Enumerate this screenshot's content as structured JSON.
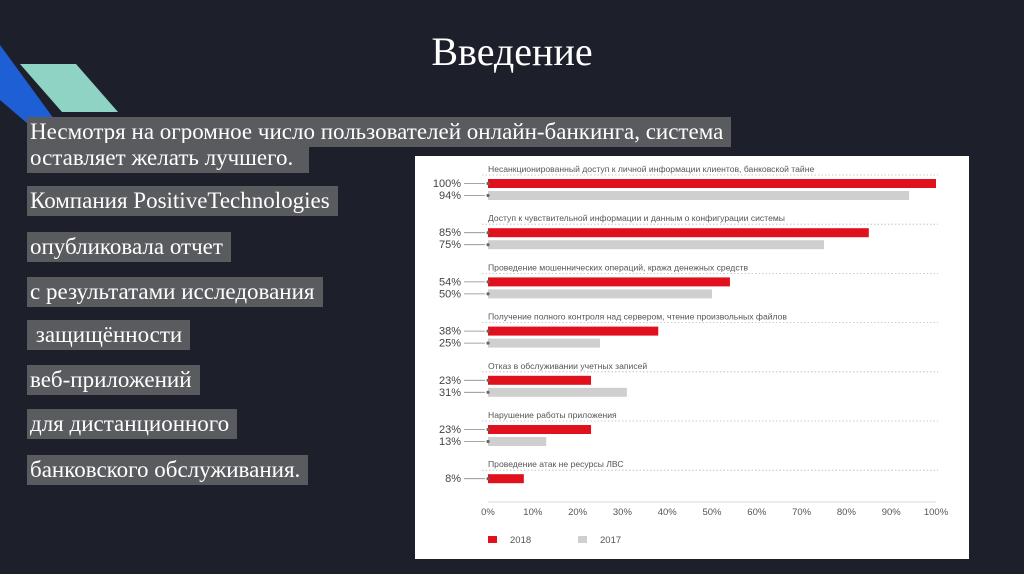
{
  "slide": {
    "title": "Введение",
    "lines": [
      "Несмотря на огромное число пользователей онлайн-банкинга, система",
      "оставляет желать лучшего.",
      "Компания PositiveTechnologies",
      "опубликовала отчет",
      "с результатами исследования",
      " защищённости",
      "веб-приложений",
      "для дистанционного",
      "банковского обслуживания."
    ]
  },
  "colors": {
    "background": "#1d202b",
    "accent_blue": "#1f5fd6",
    "accent_teal": "#8fd3c4",
    "series_2018": "#e0101c",
    "series_2017": "#cfcfcf"
  },
  "chart_data": {
    "type": "bar",
    "orientation": "horizontal",
    "categories": [
      "Несанкционированный доступ к личной информации клиентов, банковской тайне",
      "Доступ к чувствительной информации и данным о конфигурации системы",
      "Проведение мошеннических операций, кража денежных средств",
      "Получение полного контроля над сервером, чтение произвольных файлов",
      "Отказ в обслуживании учетных записей",
      "Нарушение работы приложения",
      "Проведение атак не ресурсы ЛВС"
    ],
    "series": [
      {
        "name": "2018",
        "color": "#e0101c",
        "values": [
          100,
          85,
          54,
          38,
          23,
          23,
          8
        ]
      },
      {
        "name": "2017",
        "color": "#cfcfcf",
        "values": [
          94,
          75,
          50,
          25,
          31,
          13,
          null
        ]
      }
    ],
    "value_labels": [
      [
        "100%",
        "94%"
      ],
      [
        "85%",
        "75%"
      ],
      [
        "54%",
        "50%"
      ],
      [
        "38%",
        "25%"
      ],
      [
        "23%",
        "31%"
      ],
      [
        "23%",
        "13%"
      ],
      [
        "8%"
      ]
    ],
    "xticks": [
      "0%",
      "10%",
      "20%",
      "30%",
      "40%",
      "50%",
      "60%",
      "70%",
      "80%",
      "90%",
      "100%"
    ],
    "xlim": [
      0,
      100
    ],
    "legend": [
      "2018",
      "2017"
    ],
    "legend_position": "bottom-left",
    "grid": false
  }
}
